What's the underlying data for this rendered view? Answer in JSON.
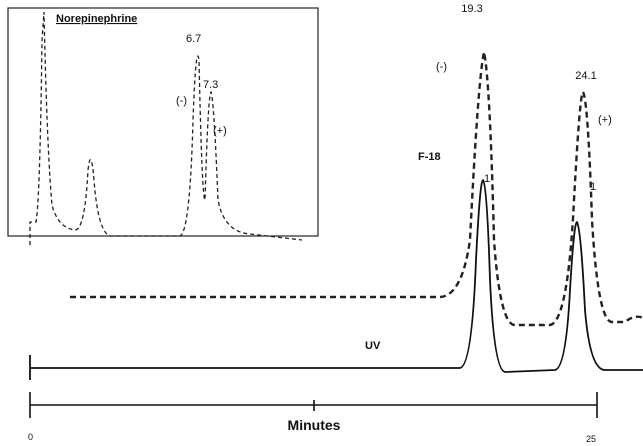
{
  "inset": {
    "title": "Norepinephrine",
    "peaks": [
      {
        "label": "6.7",
        "enantiomer": "(-)"
      },
      {
        "label": "7.3",
        "enantiomer": "(+)"
      }
    ]
  },
  "main": {
    "peaks": [
      {
        "label": "19.3",
        "enantiomer": "(-)",
        "marker": "1"
      },
      {
        "label": "24.1",
        "enantiomer": "(+)",
        "marker": "1"
      }
    ],
    "traces": [
      "F-18",
      "UV"
    ],
    "axis": {
      "title": "Minutes",
      "start": "0",
      "end": "25"
    }
  }
}
